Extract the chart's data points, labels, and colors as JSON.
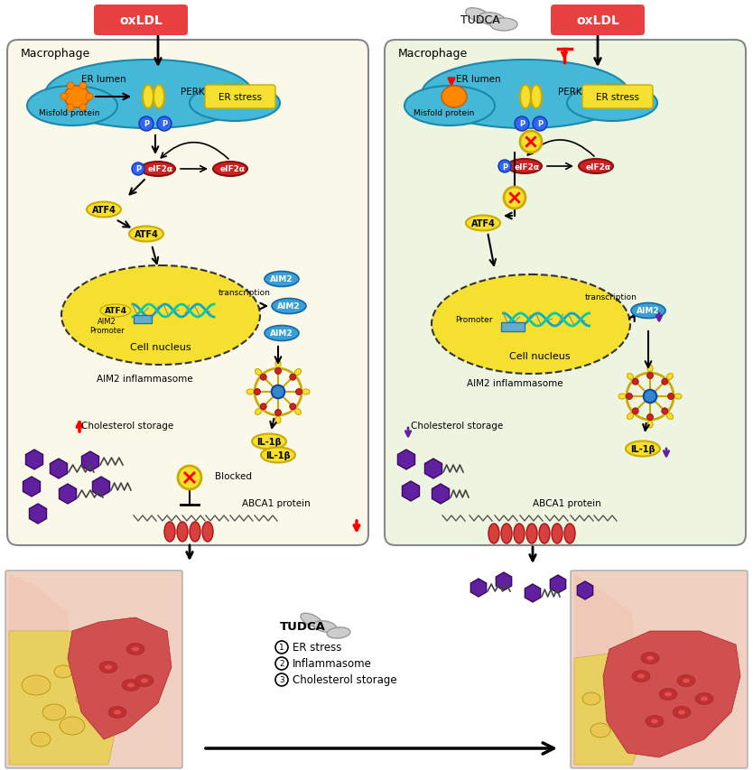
{
  "bg_color": "#ffffff",
  "left_panel_bg": "#faf8e8",
  "right_panel_bg": "#edf4e0",
  "oxldl_color": "#e84040",
  "oxldl_text": "oxLDL",
  "tudca_text": "TUDCA",
  "er_stress_color": "#f5e030",
  "er_lumen_color": "#45b8d8",
  "atf4_color": "#f5e030",
  "aim2_color": "#3a9fd4",
  "il1b_color": "#f5e030",
  "purple_color": "#6020a0",
  "legend_items": [
    "ER stress",
    "Inflammasome",
    "Cholesterol storage"
  ],
  "macrophage_label": "Macrophage"
}
